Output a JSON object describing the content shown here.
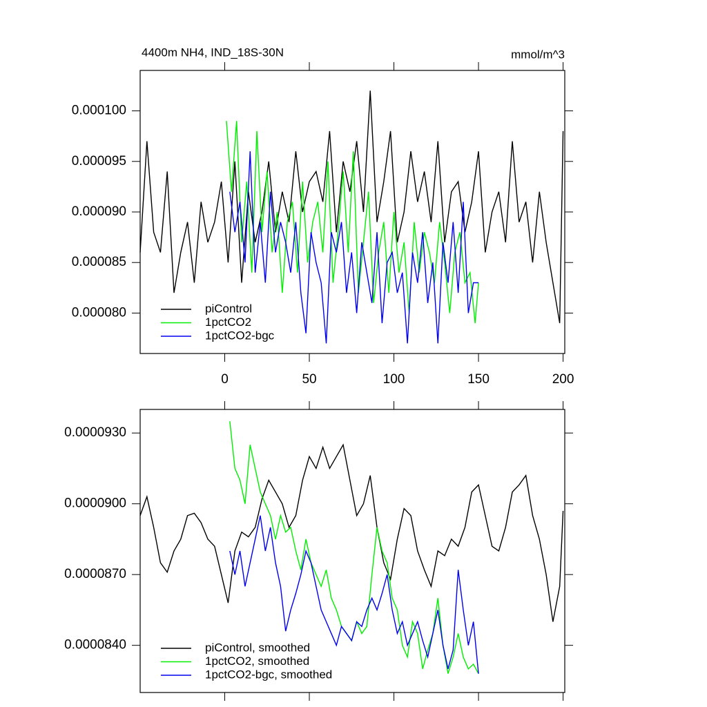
{
  "chart_data": [
    {
      "type": "line",
      "title": "4400m NH4, IND_18S-30N",
      "units": "mmol/m^3",
      "xlim": [
        -50,
        201
      ],
      "xticks": [
        0,
        50,
        100,
        150,
        200
      ],
      "xtick_labels": true,
      "ylim": [
        7.6e-05,
        0.000104
      ],
      "yticks": [
        {
          "value": 8e-05,
          "label": "0.000080"
        },
        {
          "value": 8.5e-05,
          "label": "0.000085"
        },
        {
          "value": 9e-05,
          "label": "0.000090"
        },
        {
          "value": 9.5e-05,
          "label": "0.000095"
        },
        {
          "value": 0.0001,
          "label": "0.000100"
        }
      ],
      "legend": "lower left",
      "series": [
        {
          "name": "piControl",
          "color": "#000000",
          "x": [
            -50,
            -46,
            -42,
            -38,
            -34,
            -30,
            -26,
            -22,
            -18,
            -14,
            -10,
            -6,
            -2,
            2,
            6,
            10,
            14,
            18,
            22,
            26,
            30,
            34,
            38,
            42,
            46,
            50,
            54,
            58,
            62,
            66,
            70,
            74,
            78,
            82,
            86,
            90,
            94,
            98,
            102,
            106,
            110,
            114,
            118,
            122,
            126,
            130,
            134,
            138,
            142,
            146,
            150,
            154,
            158,
            162,
            166,
            170,
            174,
            178,
            182,
            186,
            190,
            194,
            198,
            200
          ],
          "values": [
            8.6e-05,
            9.7e-05,
            8.8e-05,
            8.6e-05,
            9.4e-05,
            8.2e-05,
            8.6e-05,
            8.9e-05,
            8.3e-05,
            9.1e-05,
            8.7e-05,
            8.9e-05,
            9.3e-05,
            8.5e-05,
            9.5e-05,
            8.3e-05,
            9.2e-05,
            8.7e-05,
            9e-05,
            9.5e-05,
            8.8e-05,
            9.2e-05,
            8.9e-05,
            9.6e-05,
            9e-05,
            9.3e-05,
            9.4e-05,
            9.1e-05,
            9.8e-05,
            8.8e-05,
            9.5e-05,
            9.2e-05,
            9.7e-05,
            9e-05,
            0.000102,
            8.9e-05,
            9.3e-05,
            9.8e-05,
            8.7e-05,
            9e-05,
            9.6e-05,
            9.1e-05,
            9.4e-05,
            8.9e-05,
            9.7e-05,
            8.7e-05,
            9.2e-05,
            9.3e-05,
            8.8e-05,
            9.1e-05,
            9.6e-05,
            8.6e-05,
            9e-05,
            9.2e-05,
            8.7e-05,
            9.7e-05,
            8.9e-05,
            9.1e-05,
            8.5e-05,
            9.2e-05,
            8.7e-05,
            8.3e-05,
            7.9e-05,
            9.8e-05
          ]
        },
        {
          "name": "1pctCO2",
          "color": "#00ee00",
          "x": [
            1,
            4,
            7,
            10,
            13,
            16,
            19,
            22,
            25,
            28,
            31,
            34,
            37,
            40,
            43,
            46,
            49,
            52,
            55,
            58,
            61,
            64,
            67,
            70,
            73,
            76,
            79,
            82,
            85,
            88,
            91,
            94,
            97,
            100,
            103,
            106,
            109,
            112,
            115,
            118,
            121,
            124,
            127,
            130,
            133,
            136,
            139,
            142,
            145,
            148,
            150
          ],
          "values": [
            9.9e-05,
            9.2e-05,
            9.9e-05,
            8.7e-05,
            9.3e-05,
            8.4e-05,
            9.8e-05,
            8.8e-05,
            9.4e-05,
            8.6e-05,
            9e-05,
            8.2e-05,
            8.9e-05,
            9.1e-05,
            8.4e-05,
            9.3e-05,
            8.5e-05,
            8.9e-05,
            9.1e-05,
            8.6e-05,
            9.5e-05,
            8.3e-05,
            8.8e-05,
            9.4e-05,
            8.6e-05,
            9.6e-05,
            8.2e-05,
            8.7e-05,
            9.2e-05,
            8.1e-05,
            8.6e-05,
            8.9e-05,
            8.2e-05,
            9e-05,
            8.4e-05,
            8.7e-05,
            8e-05,
            8.9e-05,
            8.4e-05,
            8.8e-05,
            8.6e-05,
            8.3e-05,
            8.9e-05,
            8.5e-05,
            8e-05,
            8.6e-05,
            8.8e-05,
            8.3e-05,
            8.4e-05,
            7.9e-05,
            8.3e-05
          ]
        },
        {
          "name": "1pctCO2-bgc",
          "color": "#0000ee",
          "x": [
            3,
            6,
            9,
            12,
            15,
            18,
            21,
            24,
            27,
            30,
            33,
            36,
            39,
            42,
            45,
            48,
            51,
            54,
            57,
            60,
            63,
            66,
            69,
            72,
            75,
            78,
            81,
            84,
            87,
            90,
            93,
            96,
            99,
            102,
            105,
            108,
            111,
            114,
            117,
            120,
            123,
            126,
            129,
            132,
            135,
            138,
            141,
            144,
            147,
            150
          ],
          "values": [
            9.2e-05,
            8.8e-05,
            9.1e-05,
            8.5e-05,
            9.6e-05,
            8.4e-05,
            8.9e-05,
            8.3e-05,
            9.2e-05,
            8.6e-05,
            8.9e-05,
            8.7e-05,
            8.4e-05,
            8.9e-05,
            8.2e-05,
            7.8e-05,
            8.8e-05,
            8.5e-05,
            8.3e-05,
            7.7e-05,
            8.8e-05,
            8.6e-05,
            8.9e-05,
            8.2e-05,
            8.6e-05,
            8e-05,
            8.7e-05,
            8.4e-05,
            8.1e-05,
            8.8e-05,
            7.9e-05,
            8.5e-05,
            8.6e-05,
            8.2e-05,
            8.4e-05,
            7.7e-05,
            8.6e-05,
            8.3e-05,
            8.8e-05,
            8.1e-05,
            8.5e-05,
            7.7e-05,
            8.7e-05,
            8.3e-05,
            8.9e-05,
            8.2e-05,
            9.1e-05,
            8e-05,
            8.3e-05,
            8.3e-05
          ]
        }
      ]
    },
    {
      "type": "line",
      "xlim": [
        -50,
        201
      ],
      "xticks": [
        0,
        50,
        100,
        150,
        200
      ],
      "xtick_labels": false,
      "ylim": [
        8.2e-05,
        9.4e-05
      ],
      "yticks": [
        {
          "value": 8.4e-05,
          "label": "0.0000840"
        },
        {
          "value": 8.7e-05,
          "label": "0.0000870"
        },
        {
          "value": 9e-05,
          "label": "0.0000900"
        },
        {
          "value": 9.3e-05,
          "label": "0.0000930"
        }
      ],
      "legend": "lower left",
      "series": [
        {
          "name": "piControl, smoothed",
          "color": "#000000",
          "x": [
            -50,
            -46,
            -42,
            -38,
            -34,
            -30,
            -26,
            -22,
            -18,
            -14,
            -10,
            -6,
            -2,
            2,
            6,
            10,
            14,
            18,
            22,
            26,
            30,
            34,
            38,
            42,
            46,
            50,
            54,
            58,
            62,
            66,
            70,
            74,
            78,
            82,
            86,
            90,
            94,
            98,
            102,
            106,
            110,
            114,
            118,
            122,
            126,
            130,
            134,
            138,
            142,
            146,
            150,
            154,
            158,
            162,
            166,
            170,
            174,
            178,
            182,
            186,
            190,
            194,
            198,
            200
          ],
          "values": [
            8.95e-05,
            9.03e-05,
            8.9e-05,
            8.75e-05,
            8.71e-05,
            8.8e-05,
            8.85e-05,
            8.95e-05,
            8.96e-05,
            8.92e-05,
            8.85e-05,
            8.82e-05,
            8.7e-05,
            8.58e-05,
            8.8e-05,
            8.88e-05,
            8.86e-05,
            8.9e-05,
            9.02e-05,
            9.1e-05,
            9.05e-05,
            9e-05,
            8.9e-05,
            8.95e-05,
            9.1e-05,
            9.2e-05,
            9.15e-05,
            9.24e-05,
            9.15e-05,
            9.2e-05,
            9.25e-05,
            9.1e-05,
            8.95e-05,
            9e-05,
            9.12e-05,
            8.9e-05,
            8.75e-05,
            8.68e-05,
            8.85e-05,
            8.98e-05,
            8.95e-05,
            8.8e-05,
            8.72e-05,
            8.65e-05,
            8.8e-05,
            8.78e-05,
            8.85e-05,
            8.82e-05,
            8.9e-05,
            9.05e-05,
            9.08e-05,
            8.95e-05,
            8.82e-05,
            8.8e-05,
            8.9e-05,
            9.05e-05,
            9.08e-05,
            9.12e-05,
            8.95e-05,
            8.85e-05,
            8.7e-05,
            8.5e-05,
            8.65e-05,
            8.97e-05
          ]
        },
        {
          "name": "1pctCO2, smoothed",
          "color": "#00ee00",
          "x": [
            3,
            6,
            9,
            12,
            15,
            18,
            21,
            24,
            27,
            30,
            33,
            36,
            39,
            42,
            45,
            48,
            51,
            54,
            57,
            60,
            63,
            66,
            69,
            72,
            75,
            78,
            81,
            84,
            87,
            90,
            93,
            96,
            99,
            102,
            105,
            108,
            111,
            114,
            117,
            120,
            123,
            126,
            129,
            132,
            135,
            138,
            141,
            144,
            147,
            150
          ],
          "values": [
            9.35e-05,
            9.15e-05,
            9.1e-05,
            9e-05,
            9.25e-05,
            9.15e-05,
            9.05e-05,
            9e-05,
            8.95e-05,
            8.85e-05,
            8.95e-05,
            8.88e-05,
            8.9e-05,
            8.8e-05,
            8.72e-05,
            8.85e-05,
            8.75e-05,
            8.7e-05,
            8.65e-05,
            8.72e-05,
            8.6e-05,
            8.55e-05,
            8.48e-05,
            8.45e-05,
            8.42e-05,
            8.5e-05,
            8.45e-05,
            8.48e-05,
            8.7e-05,
            8.9e-05,
            8.8e-05,
            8.75e-05,
            8.6e-05,
            8.55e-05,
            8.4e-05,
            8.35e-05,
            8.5e-05,
            8.45e-05,
            8.3e-05,
            8.38e-05,
            8.45e-05,
            8.6e-05,
            8.4e-05,
            8.28e-05,
            8.35e-05,
            8.45e-05,
            8.35e-05,
            8.3e-05,
            8.32e-05,
            8.28e-05
          ]
        },
        {
          "name": "1pctCO2-bgc, smoothed",
          "color": "#0000ee",
          "x": [
            3,
            6,
            9,
            12,
            15,
            18,
            21,
            24,
            27,
            30,
            33,
            36,
            39,
            42,
            45,
            48,
            51,
            54,
            57,
            60,
            63,
            66,
            69,
            72,
            75,
            78,
            81,
            84,
            87,
            90,
            93,
            96,
            99,
            102,
            105,
            108,
            111,
            114,
            117,
            120,
            123,
            126,
            129,
            132,
            135,
            138,
            141,
            144,
            147,
            150
          ],
          "values": [
            8.8e-05,
            8.7e-05,
            8.8e-05,
            8.65e-05,
            8.75e-05,
            8.85e-05,
            8.95e-05,
            8.8e-05,
            8.9e-05,
            8.75e-05,
            8.65e-05,
            8.46e-05,
            8.55e-05,
            8.62e-05,
            8.7e-05,
            8.8e-05,
            8.75e-05,
            8.65e-05,
            8.55e-05,
            8.5e-05,
            8.45e-05,
            8.4e-05,
            8.48e-05,
            8.45e-05,
            8.42e-05,
            8.5e-05,
            8.48e-05,
            8.55e-05,
            8.6e-05,
            8.55e-05,
            8.62e-05,
            8.7e-05,
            8.55e-05,
            8.45e-05,
            8.5e-05,
            8.4e-05,
            8.45e-05,
            8.5e-05,
            8.42e-05,
            8.35e-05,
            8.45e-05,
            8.55e-05,
            8.4e-05,
            8.3e-05,
            8.38e-05,
            8.72e-05,
            8.55e-05,
            8.4e-05,
            8.5e-05,
            8.28e-05
          ]
        }
      ]
    }
  ]
}
